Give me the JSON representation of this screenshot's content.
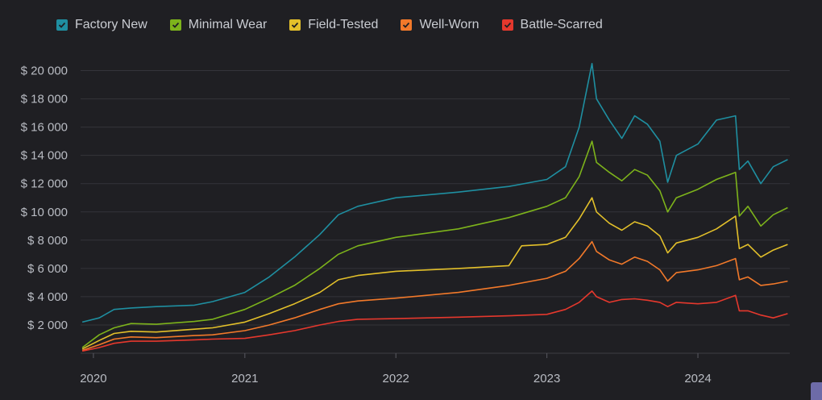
{
  "chart_data": {
    "type": "line",
    "title": "",
    "xlabel": "",
    "ylabel": "",
    "x_ticks": [
      "2020",
      "2021",
      "2022",
      "2023",
      "2024"
    ],
    "y_ticks": [
      "$ 2 000",
      "$ 4 000",
      "$ 6 000",
      "$ 8 000",
      "$ 10 000",
      "$ 12 000",
      "$ 14 000",
      "$ 16 000",
      "$ 18 000",
      "$ 20 000"
    ],
    "y_tick_values": [
      2000,
      4000,
      6000,
      8000,
      10000,
      12000,
      14000,
      16000,
      18000,
      20000
    ],
    "ylim": [
      0,
      21000
    ],
    "xlim": [
      "2019-12-01",
      "2024-08-10"
    ],
    "grid": true,
    "legend_position": "top-left",
    "series": [
      {
        "name": "Factory New",
        "color": "#1f8fa1",
        "points": [
          [
            "2019-12-05",
            2200
          ],
          [
            "2020-01-15",
            2500
          ],
          [
            "2020-02-20",
            3100
          ],
          [
            "2020-04-01",
            3200
          ],
          [
            "2020-06-01",
            3300
          ],
          [
            "2020-09-01",
            3400
          ],
          [
            "2020-10-15",
            3650
          ],
          [
            "2021-01-01",
            4300
          ],
          [
            "2021-03-01",
            5400
          ],
          [
            "2021-05-01",
            6800
          ],
          [
            "2021-07-01",
            8400
          ],
          [
            "2021-08-15",
            9800
          ],
          [
            "2021-10-01",
            10400
          ],
          [
            "2022-01-01",
            11000
          ],
          [
            "2022-06-01",
            11400
          ],
          [
            "2022-10-01",
            11800
          ],
          [
            "2023-01-01",
            12300
          ],
          [
            "2023-02-15",
            13200
          ],
          [
            "2023-03-20",
            16000
          ],
          [
            "2023-04-20",
            20500
          ],
          [
            "2023-05-01",
            18000
          ],
          [
            "2023-06-01",
            16500
          ],
          [
            "2023-07-01",
            15200
          ],
          [
            "2023-08-01",
            16800
          ],
          [
            "2023-09-01",
            16200
          ],
          [
            "2023-10-01",
            15000
          ],
          [
            "2023-10-20",
            12100
          ],
          [
            "2023-11-10",
            14000
          ],
          [
            "2024-01-01",
            14800
          ],
          [
            "2024-02-15",
            16500
          ],
          [
            "2024-04-01",
            16800
          ],
          [
            "2024-04-10",
            13000
          ],
          [
            "2024-05-01",
            13600
          ],
          [
            "2024-06-01",
            12000
          ],
          [
            "2024-07-01",
            13200
          ],
          [
            "2024-08-05",
            13700
          ]
        ]
      },
      {
        "name": "Minimal Wear",
        "color": "#7db31b",
        "points": [
          [
            "2019-12-05",
            400
          ],
          [
            "2020-01-15",
            1300
          ],
          [
            "2020-02-20",
            1800
          ],
          [
            "2020-04-01",
            2100
          ],
          [
            "2020-06-01",
            2050
          ],
          [
            "2020-09-01",
            2250
          ],
          [
            "2020-10-15",
            2400
          ],
          [
            "2021-01-01",
            3100
          ],
          [
            "2021-03-01",
            3900
          ],
          [
            "2021-05-01",
            4800
          ],
          [
            "2021-07-01",
            6000
          ],
          [
            "2021-08-15",
            7000
          ],
          [
            "2021-10-01",
            7600
          ],
          [
            "2022-01-01",
            8200
          ],
          [
            "2022-06-01",
            8800
          ],
          [
            "2022-10-01",
            9600
          ],
          [
            "2023-01-01",
            10400
          ],
          [
            "2023-02-15",
            11000
          ],
          [
            "2023-03-20",
            12500
          ],
          [
            "2023-04-20",
            15000
          ],
          [
            "2023-05-01",
            13500
          ],
          [
            "2023-06-01",
            12800
          ],
          [
            "2023-07-01",
            12200
          ],
          [
            "2023-08-01",
            13000
          ],
          [
            "2023-09-01",
            12600
          ],
          [
            "2023-10-01",
            11500
          ],
          [
            "2023-10-20",
            10000
          ],
          [
            "2023-11-10",
            11000
          ],
          [
            "2024-01-01",
            11600
          ],
          [
            "2024-02-15",
            12300
          ],
          [
            "2024-04-01",
            12800
          ],
          [
            "2024-04-10",
            9700
          ],
          [
            "2024-05-01",
            10400
          ],
          [
            "2024-06-01",
            9000
          ],
          [
            "2024-07-01",
            9800
          ],
          [
            "2024-08-05",
            10300
          ]
        ]
      },
      {
        "name": "Field-Tested",
        "color": "#e3c02a",
        "points": [
          [
            "2019-12-05",
            300
          ],
          [
            "2020-01-15",
            900
          ],
          [
            "2020-02-20",
            1400
          ],
          [
            "2020-04-01",
            1550
          ],
          [
            "2020-06-01",
            1500
          ],
          [
            "2020-09-01",
            1700
          ],
          [
            "2020-10-15",
            1800
          ],
          [
            "2021-01-01",
            2200
          ],
          [
            "2021-03-01",
            2800
          ],
          [
            "2021-05-01",
            3500
          ],
          [
            "2021-07-01",
            4300
          ],
          [
            "2021-08-15",
            5200
          ],
          [
            "2021-10-01",
            5500
          ],
          [
            "2022-01-01",
            5800
          ],
          [
            "2022-06-01",
            6000
          ],
          [
            "2022-10-01",
            6200
          ],
          [
            "2022-11-01",
            7600
          ],
          [
            "2023-01-01",
            7700
          ],
          [
            "2023-02-15",
            8200
          ],
          [
            "2023-03-20",
            9500
          ],
          [
            "2023-04-20",
            11000
          ],
          [
            "2023-05-01",
            10000
          ],
          [
            "2023-06-01",
            9200
          ],
          [
            "2023-07-01",
            8700
          ],
          [
            "2023-08-01",
            9300
          ],
          [
            "2023-09-01",
            9000
          ],
          [
            "2023-10-01",
            8300
          ],
          [
            "2023-10-20",
            7100
          ],
          [
            "2023-11-10",
            7800
          ],
          [
            "2024-01-01",
            8200
          ],
          [
            "2024-02-15",
            8800
          ],
          [
            "2024-04-01",
            9700
          ],
          [
            "2024-04-10",
            7400
          ],
          [
            "2024-05-01",
            7700
          ],
          [
            "2024-06-01",
            6800
          ],
          [
            "2024-07-01",
            7300
          ],
          [
            "2024-08-05",
            7700
          ]
        ]
      },
      {
        "name": "Well-Worn",
        "color": "#f2792a",
        "points": [
          [
            "2019-12-05",
            200
          ],
          [
            "2020-01-15",
            600
          ],
          [
            "2020-02-20",
            1000
          ],
          [
            "2020-04-01",
            1150
          ],
          [
            "2020-06-01",
            1100
          ],
          [
            "2020-09-01",
            1250
          ],
          [
            "2020-10-15",
            1300
          ],
          [
            "2021-01-01",
            1600
          ],
          [
            "2021-03-01",
            2000
          ],
          [
            "2021-05-01",
            2500
          ],
          [
            "2021-07-01",
            3100
          ],
          [
            "2021-08-15",
            3500
          ],
          [
            "2021-10-01",
            3700
          ],
          [
            "2022-01-01",
            3900
          ],
          [
            "2022-06-01",
            4300
          ],
          [
            "2022-10-01",
            4800
          ],
          [
            "2023-01-01",
            5300
          ],
          [
            "2023-02-15",
            5800
          ],
          [
            "2023-03-20",
            6700
          ],
          [
            "2023-04-20",
            7900
          ],
          [
            "2023-05-01",
            7200
          ],
          [
            "2023-06-01",
            6600
          ],
          [
            "2023-07-01",
            6300
          ],
          [
            "2023-08-01",
            6800
          ],
          [
            "2023-09-01",
            6500
          ],
          [
            "2023-10-01",
            5900
          ],
          [
            "2023-10-20",
            5100
          ],
          [
            "2023-11-10",
            5700
          ],
          [
            "2024-01-01",
            5900
          ],
          [
            "2024-02-15",
            6200
          ],
          [
            "2024-04-01",
            6700
          ],
          [
            "2024-04-10",
            5200
          ],
          [
            "2024-05-01",
            5400
          ],
          [
            "2024-06-01",
            4800
          ],
          [
            "2024-07-01",
            4900
          ],
          [
            "2024-08-05",
            5100
          ]
        ]
      },
      {
        "name": "Battle-Scarred",
        "color": "#e5382d",
        "points": [
          [
            "2019-12-05",
            150
          ],
          [
            "2020-01-15",
            400
          ],
          [
            "2020-02-20",
            700
          ],
          [
            "2020-04-01",
            850
          ],
          [
            "2020-06-01",
            850
          ],
          [
            "2020-09-01",
            950
          ],
          [
            "2020-10-15",
            1000
          ],
          [
            "2021-01-01",
            1050
          ],
          [
            "2021-03-01",
            1300
          ],
          [
            "2021-05-01",
            1600
          ],
          [
            "2021-07-01",
            2000
          ],
          [
            "2021-08-15",
            2250
          ],
          [
            "2021-10-01",
            2400
          ],
          [
            "2022-01-01",
            2450
          ],
          [
            "2022-06-01",
            2550
          ],
          [
            "2022-10-01",
            2650
          ],
          [
            "2023-01-01",
            2750
          ],
          [
            "2023-02-15",
            3100
          ],
          [
            "2023-03-20",
            3600
          ],
          [
            "2023-04-20",
            4400
          ],
          [
            "2023-05-01",
            4000
          ],
          [
            "2023-06-01",
            3600
          ],
          [
            "2023-07-01",
            3800
          ],
          [
            "2023-08-01",
            3850
          ],
          [
            "2023-09-01",
            3750
          ],
          [
            "2023-10-01",
            3600
          ],
          [
            "2023-10-20",
            3300
          ],
          [
            "2023-11-10",
            3600
          ],
          [
            "2024-01-01",
            3500
          ],
          [
            "2024-02-15",
            3600
          ],
          [
            "2024-04-01",
            4100
          ],
          [
            "2024-04-10",
            3000
          ],
          [
            "2024-05-01",
            3000
          ],
          [
            "2024-06-01",
            2700
          ],
          [
            "2024-07-01",
            2500
          ],
          [
            "2024-08-05",
            2800
          ]
        ]
      }
    ]
  }
}
